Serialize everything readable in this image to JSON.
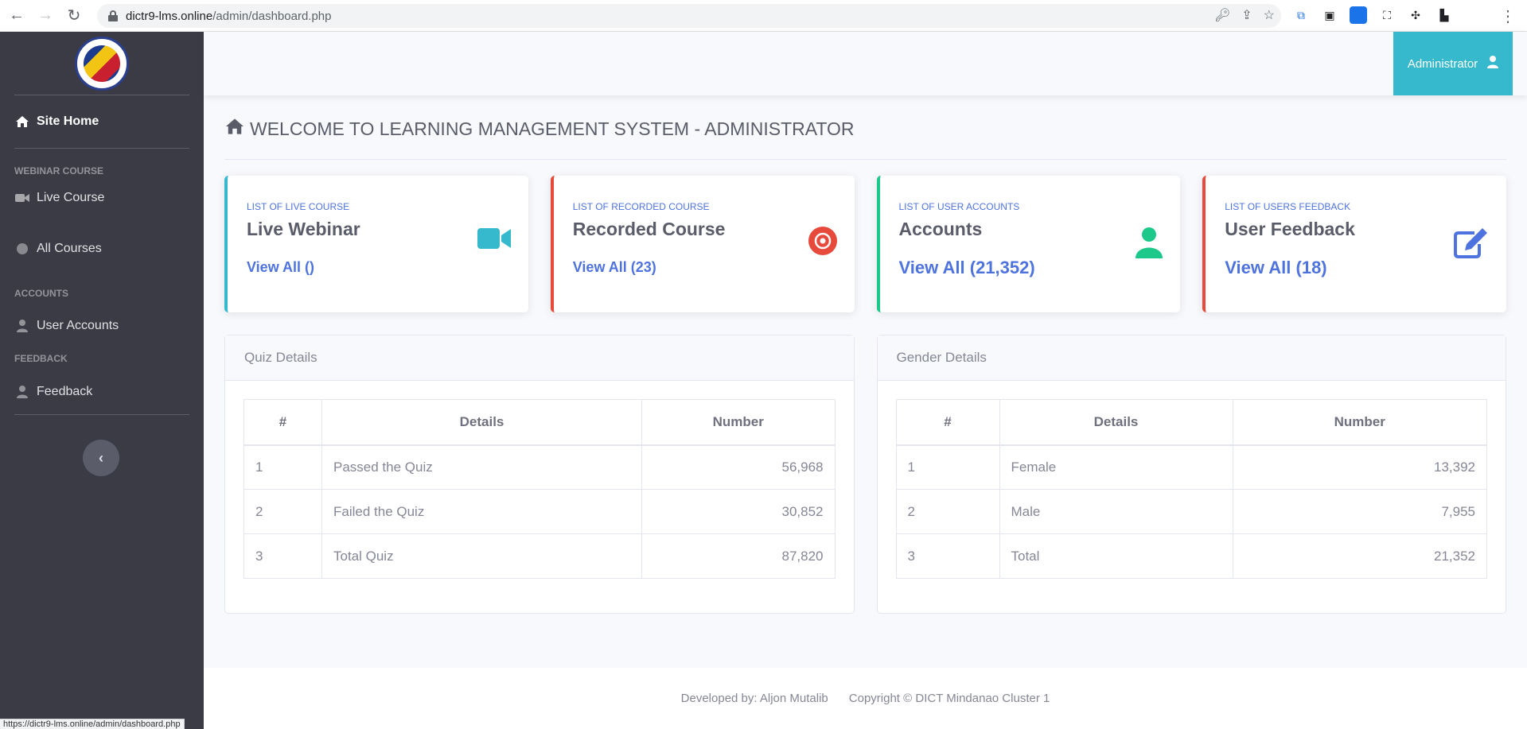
{
  "browser": {
    "url_host": "dictr9-lms.online",
    "url_path": "/admin/dashboard.php",
    "status_url": "https://dictr9-lms.online/admin/dashboard.php"
  },
  "sidebar": {
    "site_home": "Site Home",
    "sections": [
      {
        "heading": "WEBINAR COURSE",
        "items": [
          {
            "label": "Live Course",
            "icon": "video-icon"
          },
          {
            "label": "All Courses",
            "icon": "circle-icon"
          }
        ]
      },
      {
        "heading": "ACCOUNTS",
        "items": [
          {
            "label": "User Accounts",
            "icon": "user-icon"
          }
        ]
      },
      {
        "heading": "FEEDBACK",
        "items": [
          {
            "label": "Feedback",
            "icon": "user-icon"
          }
        ]
      }
    ],
    "toggle_icon": "chevron-left-icon"
  },
  "topbar": {
    "user_label": "Administrator"
  },
  "main": {
    "title": "WELCOME TO LEARNING MANAGEMENT SYSTEM - ADMINISTRATOR",
    "cards": [
      {
        "small": "LIST OF LIVE COURSE",
        "big": "Live Webinar",
        "link": "View All ()",
        "color": "#36b9cc",
        "icon": "video-camera-icon"
      },
      {
        "small": "LIST OF RECORDED COURSE",
        "big": "Recorded Course",
        "link": "View All (23)",
        "color": "#e74a3b",
        "icon": "dot-circle-icon"
      },
      {
        "small": "LIST OF USER ACCOUNTS",
        "big": "Accounts",
        "link": "View All (21,352)",
        "color": "#1cc88a",
        "icon": "user-icon"
      },
      {
        "small": "LIST OF USERS FEEDBACK",
        "big": "User Feedback",
        "link": "View All (18)",
        "color": "#4e73df",
        "icon": "edit-icon"
      }
    ],
    "quiz": {
      "title": "Quiz Details",
      "headers": [
        "#",
        "Details",
        "Number"
      ],
      "rows": [
        [
          "1",
          "Passed the Quiz",
          "56,968"
        ],
        [
          "2",
          "Failed the Quiz",
          "30,852"
        ],
        [
          "3",
          "Total Quiz",
          "87,820"
        ]
      ]
    },
    "gender": {
      "title": "Gender Details",
      "headers": [
        "#",
        "Details",
        "Number"
      ],
      "rows": [
        [
          "1",
          "Female",
          "13,392"
        ],
        [
          "2",
          "Male",
          "7,955"
        ],
        [
          "3",
          "Total",
          "21,352"
        ]
      ]
    }
  },
  "footer": {
    "developer": "Developed by: Aljon Mutalib",
    "copyright": "Copyright © DICT Mindanao Cluster 1"
  }
}
